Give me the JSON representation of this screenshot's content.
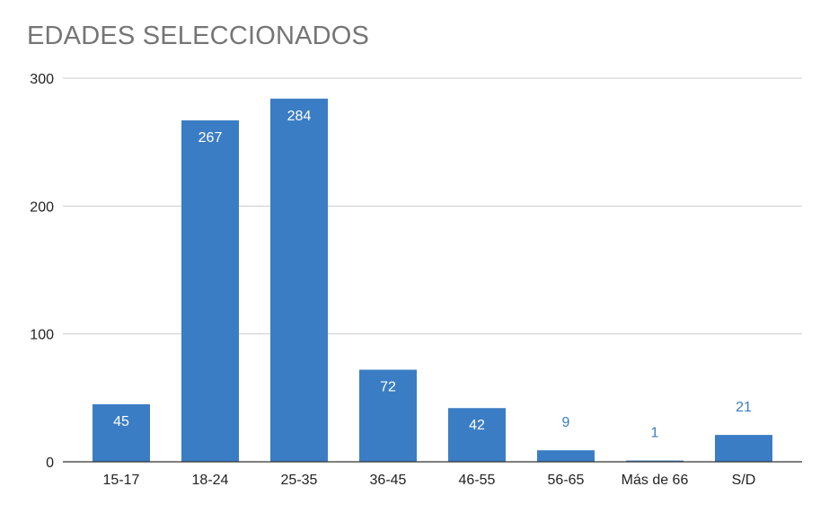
{
  "chart_data": {
    "type": "bar",
    "title": "EDADES SELECCIONADOS",
    "xlabel": "",
    "ylabel": "",
    "categories": [
      "15-17",
      "18-24",
      "25-35",
      "36-45",
      "46-55",
      "56-65",
      "Más de 66",
      "S/D"
    ],
    "values": [
      45,
      267,
      284,
      72,
      42,
      9,
      1,
      21
    ],
    "data_labels": [
      "45",
      "267",
      "284",
      "72",
      "42",
      "9",
      "1",
      "21"
    ],
    "ylim": [
      0,
      300
    ],
    "yticks": [
      0,
      100,
      200,
      300
    ],
    "ytick_labels": [
      "0",
      "100",
      "200",
      "300"
    ],
    "grid": true,
    "legend": "none",
    "bar_color": "#3b7dc4",
    "grid_color": "#cccccc",
    "axis_color": "#333333"
  }
}
